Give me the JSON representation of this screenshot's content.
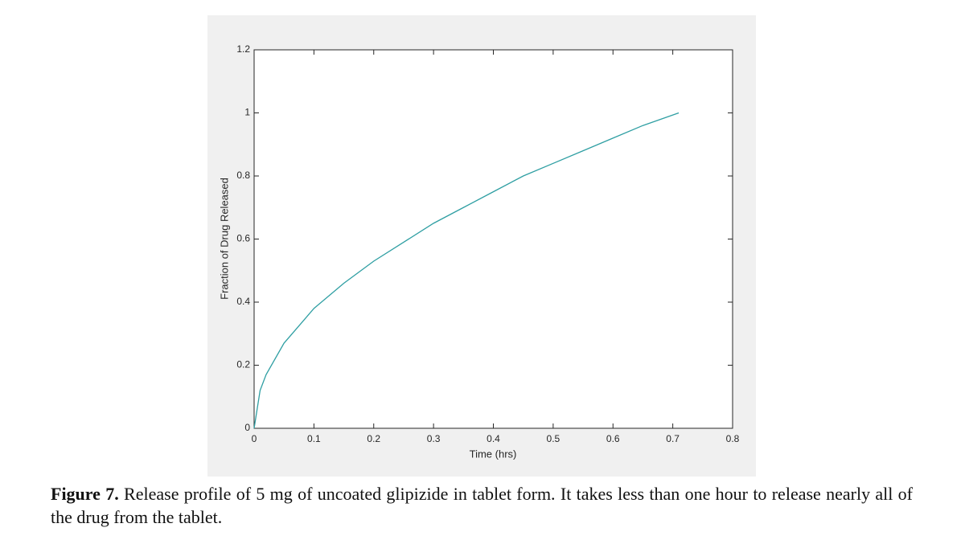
{
  "chart_data": {
    "type": "line",
    "xlabel": "Time (hrs)",
    "ylabel": "Fraction of Drug Released",
    "x": [
      0,
      0.01,
      0.02,
      0.05,
      0.1,
      0.15,
      0.2,
      0.25,
      0.3,
      0.35,
      0.4,
      0.45,
      0.5,
      0.55,
      0.6,
      0.65,
      0.71
    ],
    "values": [
      0,
      0.12,
      0.17,
      0.27,
      0.38,
      0.46,
      0.53,
      0.59,
      0.65,
      0.7,
      0.75,
      0.8,
      0.84,
      0.88,
      0.92,
      0.96,
      1.0
    ],
    "color": "#2f9fa3",
    "xlim": [
      0,
      0.8
    ],
    "xticks": [
      0,
      0.1,
      0.2,
      0.3,
      0.4,
      0.5,
      0.6,
      0.7,
      0.8
    ],
    "ylim": [
      0,
      1.2
    ],
    "yticks": [
      0,
      0.2,
      0.4,
      0.6,
      0.8,
      1,
      1.2
    ],
    "grid": false
  },
  "caption": {
    "label": "Figure 7.",
    "text": "Release profile of 5 mg of uncoated glipizide in tablet form. It takes less than one hour to release nearly all of the drug from the tablet."
  }
}
